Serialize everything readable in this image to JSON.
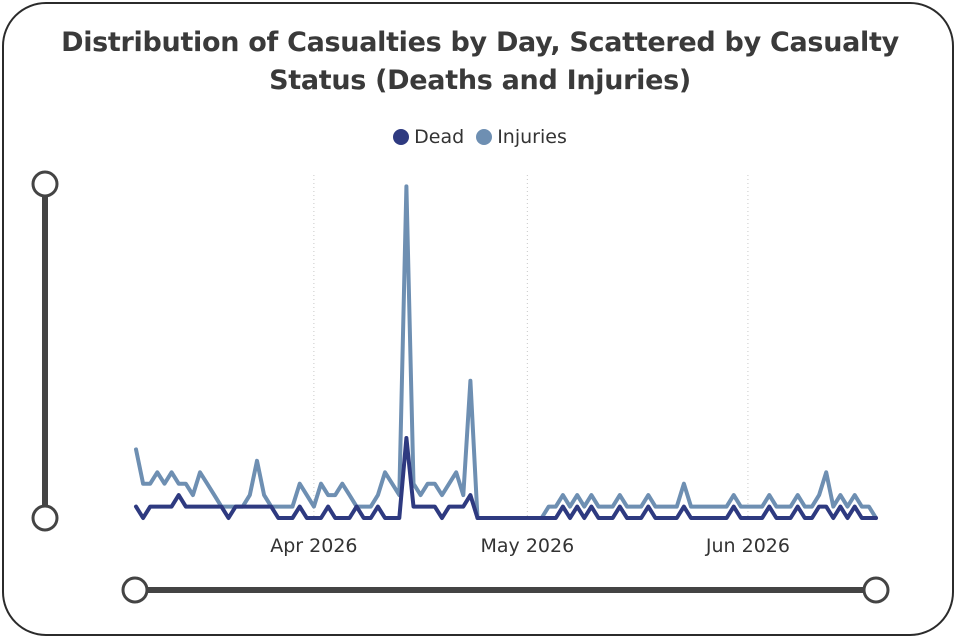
{
  "chart_data": {
    "type": "line",
    "title_lines": [
      "Distribution of Casualties by Day, Scattered by Casualty",
      "Status (Deaths and Injuries)"
    ],
    "xlabel": "",
    "ylabel": "",
    "legend_position": "top-center",
    "grid": "vertical dotted gridlines at month ticks",
    "x_start": "2026-03-07",
    "x_end": "2026-06-19",
    "x_ticks": [
      {
        "date": "2026-04-01",
        "label": "Apr 2026"
      },
      {
        "date": "2026-05-01",
        "label": "May 2026"
      },
      {
        "date": "2026-06-01",
        "label": "Jun 2026"
      }
    ],
    "ylim": [
      0,
      30
    ],
    "series": [
      {
        "name": "Injuries",
        "color": "#6e8fb2",
        "values": [
          6,
          3,
          3,
          4,
          3,
          4,
          3,
          3,
          2,
          4,
          3,
          2,
          1,
          1,
          1,
          1,
          2,
          5,
          2,
          1,
          1,
          1,
          1,
          3,
          2,
          1,
          3,
          2,
          2,
          3,
          2,
          1,
          1,
          1,
          2,
          4,
          3,
          2,
          29,
          3,
          2,
          3,
          3,
          2,
          3,
          4,
          2,
          12,
          0,
          0,
          0,
          0,
          0,
          0,
          0,
          0,
          0,
          0,
          1,
          1,
          2,
          1,
          2,
          1,
          2,
          1,
          1,
          1,
          2,
          1,
          1,
          1,
          2,
          1,
          1,
          1,
          1,
          3,
          1,
          1,
          1,
          1,
          1,
          1,
          2,
          1,
          1,
          1,
          1,
          2,
          1,
          1,
          1,
          2,
          1,
          1,
          2,
          4,
          1,
          2,
          1,
          2,
          1,
          1,
          0
        ]
      },
      {
        "name": "Dead",
        "color": "#2e3a80",
        "values": [
          1,
          0,
          1,
          1,
          1,
          1,
          2,
          1,
          1,
          1,
          1,
          1,
          1,
          0,
          1,
          1,
          1,
          1,
          1,
          1,
          0,
          0,
          0,
          1,
          0,
          0,
          0,
          1,
          0,
          0,
          0,
          1,
          0,
          0,
          1,
          0,
          0,
          0,
          7,
          1,
          1,
          1,
          1,
          0,
          1,
          1,
          1,
          2,
          0,
          0,
          0,
          0,
          0,
          0,
          0,
          0,
          0,
          0,
          0,
          0,
          1,
          0,
          1,
          0,
          1,
          0,
          0,
          0,
          1,
          0,
          0,
          0,
          1,
          0,
          0,
          0,
          0,
          1,
          0,
          0,
          0,
          0,
          0,
          0,
          1,
          0,
          0,
          0,
          0,
          1,
          0,
          0,
          0,
          1,
          0,
          0,
          1,
          1,
          0,
          1,
          0,
          1,
          0,
          0,
          0
        ]
      }
    ]
  }
}
